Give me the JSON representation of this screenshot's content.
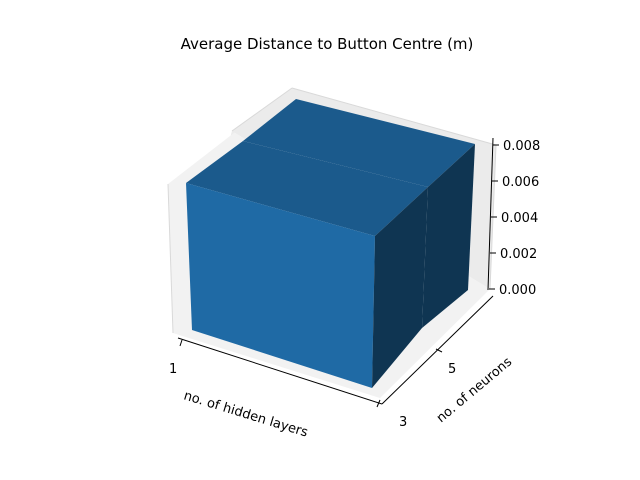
{
  "chart_data": {
    "type": "bar3d",
    "title": "Average Distance to Button Centre (m)",
    "xlabel": "no. of hidden layers",
    "ylabel": "no. of neurons",
    "zlabel": "",
    "x_ticks": [
      "1",
      "3"
    ],
    "y_ticks": [
      "5",
      "3"
    ],
    "z_ticks": [
      "0.000",
      "0.002",
      "0.004",
      "0.006",
      "0.008"
    ],
    "zlim": [
      0,
      0.008
    ],
    "grid": true,
    "bars": [
      {
        "hidden_layers": "1-3",
        "neurons": "3-5",
        "value": 0.008
      },
      {
        "hidden_layers": "1-3",
        "neurons": "5",
        "value": 0.008
      }
    ],
    "colors": {
      "front": "#1f6aa5",
      "top": "#1b5a8c",
      "side": "#0f3552",
      "pane": "#f2f2f2",
      "grid": "#d9d9d9"
    }
  }
}
